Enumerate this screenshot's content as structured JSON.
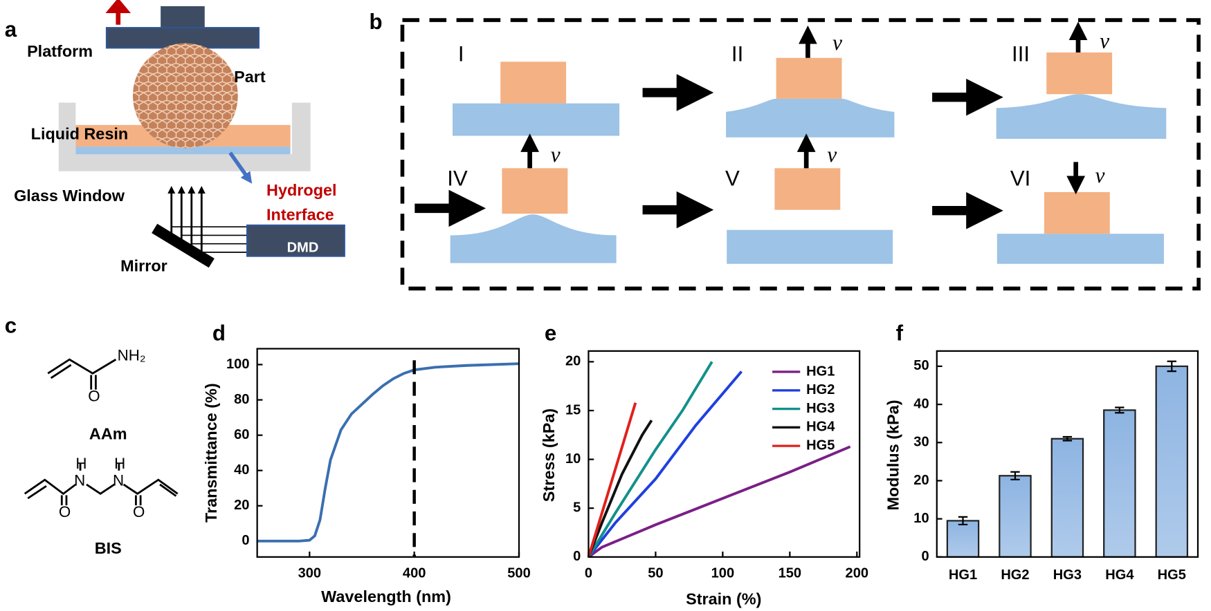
{
  "panel_a": {
    "label": "a",
    "platform": "Platform",
    "part": "Part",
    "resin": "Liquid Resin",
    "window": "Glass Window",
    "interface": [
      "Hydrogel",
      "Interface"
    ],
    "mirror": "Mirror",
    "dmd": "DMD"
  },
  "panel_b": {
    "label": "b",
    "stages": [
      {
        "label": "I"
      },
      {
        "label": "II",
        "velocity": "v"
      },
      {
        "label": "III",
        "velocity": "v"
      },
      {
        "label": "IV",
        "velocity": "v"
      },
      {
        "label": "V",
        "velocity": "v"
      },
      {
        "label": "VI",
        "velocity": "v"
      }
    ]
  },
  "panel_c": {
    "label": "c",
    "molecules": [
      {
        "name": "AAm",
        "atoms": [
          "NH₂",
          "O"
        ]
      },
      {
        "name": "BIS",
        "atoms": [
          "H",
          "H",
          "N",
          "N",
          "O",
          "O"
        ]
      }
    ]
  },
  "chart_data": [
    {
      "type": "line",
      "panel": "d",
      "x_label": "Wavelength (nm)",
      "y_label": "Transmittance (%)",
      "x": [
        250,
        270,
        290,
        300,
        305,
        310,
        315,
        320,
        330,
        340,
        360,
        370,
        380,
        390,
        400,
        420,
        450,
        500
      ],
      "series": [
        {
          "color": "#3a6fb0",
          "values": [
            0,
            0,
            0,
            0.5,
            3,
            12,
            30,
            46,
            63,
            72,
            83,
            88,
            92,
            95,
            97,
            98.5,
            99.5,
            100.5
          ]
        }
      ],
      "reference_x": 400,
      "xlim": [
        250,
        500
      ],
      "ylim": [
        -9,
        109
      ],
      "xticks": [
        300,
        400,
        500
      ],
      "yticks": [
        0,
        20,
        40,
        60,
        80,
        100
      ]
    },
    {
      "type": "multiline",
      "panel": "e",
      "x_label": "Strain (%)",
      "y_label": "Stress (kPa)",
      "legend": "top-right",
      "series": [
        {
          "name": "HG1",
          "color": "#7a1f86",
          "x": [
            0,
            10,
            50,
            100,
            150,
            195
          ],
          "values": [
            0,
            1,
            3.3,
            6,
            8.7,
            11.3
          ]
        },
        {
          "name": "HG2",
          "color": "#1f3fe0",
          "x": [
            0,
            20,
            50,
            80,
            114
          ],
          "values": [
            0,
            3.5,
            8,
            13.5,
            19
          ]
        },
        {
          "name": "HG3",
          "color": "#13908a",
          "x": [
            0,
            20,
            50,
            70,
            92
          ],
          "values": [
            0,
            4.5,
            11,
            15,
            20
          ]
        },
        {
          "name": "HG4",
          "color": "#111111",
          "x": [
            0,
            10,
            25,
            40,
            47
          ],
          "values": [
            0,
            3.5,
            8.5,
            12.5,
            14
          ]
        },
        {
          "name": "HG5",
          "color": "#e0201c",
          "x": [
            0,
            10,
            20,
            35
          ],
          "values": [
            0,
            4.5,
            9,
            15.8
          ]
        }
      ],
      "xlim": [
        0,
        202
      ],
      "ylim": [
        0,
        21.1
      ],
      "xticks": [
        0,
        50,
        100,
        150,
        200
      ],
      "yticks": [
        0,
        5,
        10,
        15,
        20
      ]
    },
    {
      "type": "bar",
      "panel": "f",
      "y_label": "Modulus (kPa)",
      "color": "#8db4e2",
      "categories": [
        "HG1",
        "HG2",
        "HG3",
        "HG4",
        "HG5"
      ],
      "values": [
        9.5,
        21.3,
        31,
        38.5,
        50
      ],
      "errors": [
        1,
        1,
        0.5,
        0.7,
        1.3
      ],
      "ylim": [
        0,
        54
      ],
      "yticks": [
        0,
        10,
        20,
        30,
        40,
        50
      ]
    }
  ]
}
